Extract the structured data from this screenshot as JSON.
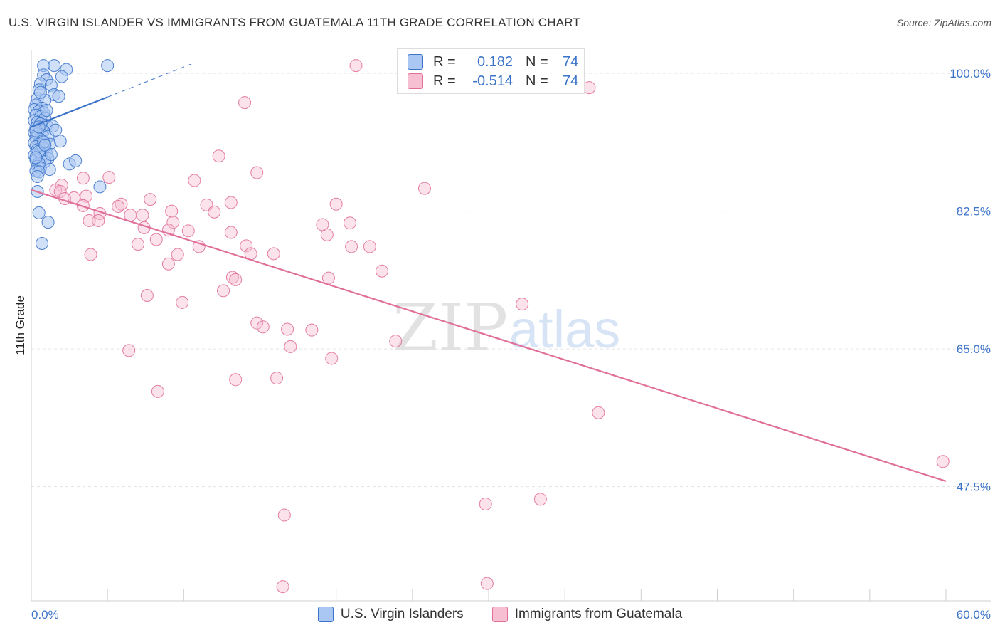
{
  "title": "U.S. VIRGIN ISLANDER VS IMMIGRANTS FROM GUATEMALA 11TH GRADE CORRELATION CHART",
  "source": "Source: ZipAtlas.com",
  "watermark": {
    "zip": "ZIP",
    "atlas": "atlas"
  },
  "colors": {
    "blue": "#3b73c9",
    "blue_fill": "#a9c7f2",
    "pink": "#e0709a",
    "pink_fill": "#f7bfd2",
    "grid": "#e3e3e3"
  },
  "legend_box": {
    "rows": [
      {
        "r_label": "R =",
        "r_value": "0.182",
        "n_label": "N =",
        "n_value": "74"
      },
      {
        "r_label": "R =",
        "r_value": "-0.514",
        "n_label": "N =",
        "n_value": "74"
      }
    ]
  },
  "legend_bottom": [
    "U.S. Virgin Islanders",
    "Immigrants from Guatemala"
  ],
  "chart_data": {
    "type": "scatter",
    "title": "U.S. VIRGIN ISLANDER VS IMMIGRANTS FROM GUATEMALA 11TH GRADE CORRELATION CHART",
    "xlabel": "",
    "ylabel": "11th Grade",
    "xlim": [
      0,
      60
    ],
    "ylim": [
      33,
      103
    ],
    "x_tick_labels": [
      "0.0%",
      "60.0%"
    ],
    "y_ticks": [
      100.0,
      82.5,
      65.0,
      47.5
    ],
    "y_tick_labels": [
      "100.0%",
      "82.5%",
      "65.0%",
      "47.5%"
    ],
    "grid": true,
    "series": [
      {
        "name": "U.S. Virgin Islanders",
        "r": 0.182,
        "n": 74,
        "trend": {
          "x": [
            0,
            5.0
          ],
          "y": [
            93.2,
            97.0
          ],
          "dashed_to": [
            10.5,
            101.2
          ]
        },
        "points": [
          [
            0.8,
            101.0
          ],
          [
            1.5,
            101.0
          ],
          [
            5.0,
            101.0
          ],
          [
            2.3,
            100.5
          ],
          [
            0.8,
            99.8
          ],
          [
            2.0,
            99.6
          ],
          [
            1.0,
            99.2
          ],
          [
            0.6,
            98.7
          ],
          [
            1.3,
            98.5
          ],
          [
            0.5,
            97.9
          ],
          [
            1.5,
            97.3
          ],
          [
            1.8,
            97.1
          ],
          [
            0.4,
            96.8
          ],
          [
            0.9,
            96.6
          ],
          [
            0.3,
            96.0
          ],
          [
            0.7,
            95.6
          ],
          [
            0.2,
            95.4
          ],
          [
            0.5,
            95.2
          ],
          [
            0.8,
            95.0
          ],
          [
            0.3,
            94.7
          ],
          [
            0.6,
            94.5
          ],
          [
            0.9,
            94.3
          ],
          [
            0.2,
            94.0
          ],
          [
            0.4,
            93.8
          ],
          [
            0.6,
            93.6
          ],
          [
            1.0,
            93.4
          ],
          [
            1.4,
            93.3
          ],
          [
            0.3,
            93.1
          ],
          [
            0.5,
            92.9
          ],
          [
            0.8,
            92.7
          ],
          [
            0.2,
            92.5
          ],
          [
            0.4,
            92.3
          ],
          [
            0.7,
            92.2
          ],
          [
            1.1,
            92.0
          ],
          [
            0.3,
            91.8
          ],
          [
            0.6,
            91.6
          ],
          [
            1.9,
            91.4
          ],
          [
            0.2,
            91.2
          ],
          [
            0.5,
            91.0
          ],
          [
            1.2,
            91.0
          ],
          [
            0.3,
            90.7
          ],
          [
            0.8,
            90.5
          ],
          [
            0.4,
            90.3
          ],
          [
            0.6,
            90.0
          ],
          [
            1.0,
            89.8
          ],
          [
            0.2,
            89.6
          ],
          [
            0.7,
            89.4
          ],
          [
            1.1,
            89.2
          ],
          [
            0.3,
            89.0
          ],
          [
            0.9,
            88.8
          ],
          [
            0.5,
            88.6
          ],
          [
            2.5,
            88.5
          ],
          [
            2.9,
            88.9
          ],
          [
            0.4,
            88.2
          ],
          [
            0.6,
            88.0
          ],
          [
            1.2,
            87.8
          ],
          [
            0.3,
            87.6
          ],
          [
            0.5,
            87.5
          ],
          [
            4.5,
            85.6
          ],
          [
            0.4,
            85.0
          ],
          [
            0.5,
            82.3
          ],
          [
            1.1,
            81.1
          ],
          [
            0.7,
            78.4
          ],
          [
            0.5,
            90.1
          ],
          [
            1.3,
            89.7
          ],
          [
            0.3,
            92.7
          ],
          [
            0.8,
            91.3
          ],
          [
            0.5,
            93.2
          ],
          [
            1.0,
            95.3
          ],
          [
            0.6,
            97.6
          ],
          [
            1.6,
            92.8
          ],
          [
            0.4,
            86.9
          ],
          [
            0.9,
            90.9
          ],
          [
            0.3,
            89.3
          ]
        ]
      },
      {
        "name": "Immigrants from Guatemala",
        "r": -0.514,
        "n": 74,
        "trend": {
          "x": [
            0,
            60
          ],
          "y": [
            85.2,
            48.2
          ]
        },
        "points": [
          [
            21.3,
            101.0
          ],
          [
            36.6,
            98.2
          ],
          [
            14.0,
            96.3
          ],
          [
            12.3,
            89.5
          ],
          [
            14.8,
            87.4
          ],
          [
            3.4,
            86.7
          ],
          [
            5.1,
            86.8
          ],
          [
            10.7,
            86.4
          ],
          [
            2.0,
            85.8
          ],
          [
            1.6,
            85.2
          ],
          [
            1.9,
            85.0
          ],
          [
            2.2,
            84.1
          ],
          [
            2.8,
            84.2
          ],
          [
            3.6,
            84.4
          ],
          [
            5.9,
            83.4
          ],
          [
            3.4,
            83.2
          ],
          [
            7.8,
            84.0
          ],
          [
            9.2,
            82.5
          ],
          [
            11.5,
            83.3
          ],
          [
            13.1,
            83.6
          ],
          [
            20.0,
            83.4
          ],
          [
            25.8,
            85.4
          ],
          [
            9.3,
            81.1
          ],
          [
            12.0,
            82.4
          ],
          [
            6.5,
            82.0
          ],
          [
            4.5,
            82.2
          ],
          [
            7.3,
            82.0
          ],
          [
            4.4,
            81.3
          ],
          [
            7.4,
            80.4
          ],
          [
            10.3,
            80.0
          ],
          [
            19.1,
            80.8
          ],
          [
            8.2,
            78.9
          ],
          [
            13.1,
            79.8
          ],
          [
            7.0,
            78.3
          ],
          [
            11.0,
            78.0
          ],
          [
            14.1,
            78.1
          ],
          [
            21.0,
            78.0
          ],
          [
            22.2,
            78.0
          ],
          [
            14.4,
            77.1
          ],
          [
            3.9,
            77.0
          ],
          [
            9.6,
            77.0
          ],
          [
            15.9,
            77.1
          ],
          [
            9.0,
            75.8
          ],
          [
            23.0,
            74.9
          ],
          [
            13.2,
            74.1
          ],
          [
            13.4,
            73.8
          ],
          [
            19.5,
            74.0
          ],
          [
            12.6,
            72.4
          ],
          [
            7.6,
            71.8
          ],
          [
            9.9,
            70.9
          ],
          [
            32.2,
            70.7
          ],
          [
            14.8,
            68.3
          ],
          [
            15.2,
            67.8
          ],
          [
            16.8,
            67.5
          ],
          [
            18.4,
            67.4
          ],
          [
            23.9,
            66.0
          ],
          [
            17.0,
            65.3
          ],
          [
            6.4,
            64.8
          ],
          [
            19.7,
            63.8
          ],
          [
            13.4,
            61.1
          ],
          [
            16.1,
            61.3
          ],
          [
            8.3,
            59.6
          ],
          [
            37.2,
            56.9
          ],
          [
            59.8,
            50.7
          ],
          [
            29.8,
            45.3
          ],
          [
            33.4,
            45.9
          ],
          [
            16.6,
            43.9
          ],
          [
            29.9,
            35.2
          ],
          [
            16.5,
            34.8
          ],
          [
            9.0,
            80.1
          ],
          [
            3.8,
            81.3
          ],
          [
            5.7,
            83.1
          ],
          [
            20.9,
            81.0
          ],
          [
            19.4,
            79.5
          ]
        ]
      }
    ]
  }
}
